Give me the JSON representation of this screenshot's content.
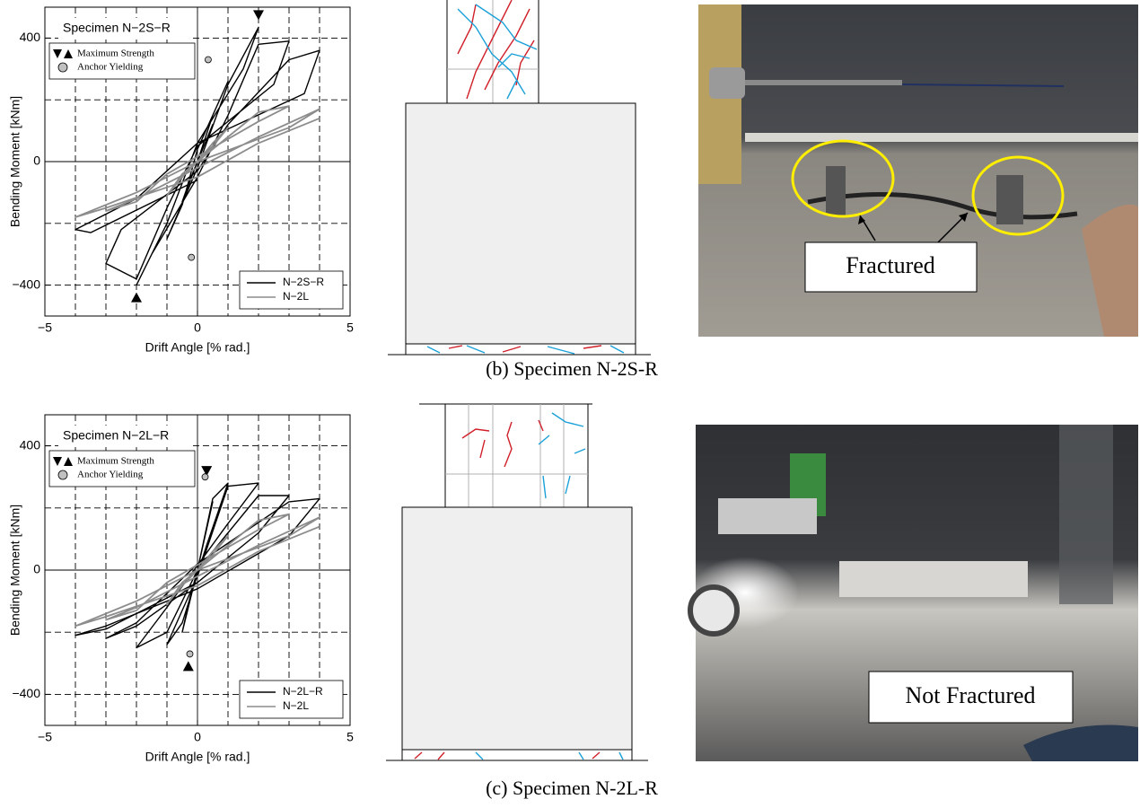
{
  "chart_data": [
    {
      "type": "line",
      "title": "Specimen N−2S−R",
      "x_label": "Drift Angle [% rad.]",
      "y_label": "Bending Moment [kNm]",
      "xlim": [
        -5,
        5
      ],
      "ylim": [
        -500,
        500
      ],
      "xticks": [
        {
          "value": -5,
          "label": "−5"
        },
        0,
        5
      ],
      "yticks": [
        {
          "value": -400,
          "label": "−400"
        },
        0,
        400
      ],
      "xgrid": [
        -4,
        -3,
        -2,
        -1,
        0,
        1,
        2,
        3,
        4
      ],
      "ygrid": [
        -400,
        -200,
        0,
        200,
        400
      ],
      "legend": "lower right",
      "series": [
        {
          "name": "N−2S−R",
          "color": "#000000",
          "x": [
            0,
            0.25,
            0.5,
            0,
            -0.25,
            -0.5,
            0,
            0.5,
            1,
            0,
            -0.5,
            -1,
            0,
            1,
            2,
            1.5,
            0,
            -1,
            -2,
            -1.5,
            0,
            1,
            2,
            3,
            2.5,
            0,
            -1,
            -2,
            -3,
            -2.5,
            0,
            1,
            3,
            4,
            3.5,
            0,
            -2,
            -4,
            -3.5,
            0
          ],
          "values": [
            0,
            60,
            120,
            0,
            -60,
            -130,
            0,
            150,
            260,
            40,
            -140,
            -250,
            -20,
            250,
            435,
            300,
            60,
            -200,
            -400,
            -300,
            -50,
            150,
            380,
            390,
            250,
            50,
            -150,
            -380,
            -330,
            -220,
            -30,
            120,
            330,
            360,
            220,
            60,
            -120,
            -220,
            -230,
            -60
          ]
        },
        {
          "name": "N−2L",
          "color": "#8c8c8c",
          "x": [
            0,
            0.5,
            1,
            0.5,
            -0.5,
            -1,
            -0.5,
            0.5,
            2,
            3,
            2,
            -1,
            -2,
            -3,
            -2,
            0,
            2,
            4,
            3,
            0,
            -2,
            -4,
            -3,
            0,
            2,
            4
          ],
          "values": [
            0,
            60,
            110,
            50,
            -50,
            -110,
            -40,
            40,
            160,
            180,
            130,
            -40,
            -130,
            -160,
            -120,
            -20,
            80,
            170,
            110,
            0,
            -100,
            -180,
            -150,
            -50,
            60,
            140
          ]
        }
      ],
      "markers": [
        {
          "name": "Maximum Strength",
          "shape": "triangle",
          "color": "#000000",
          "x": [
            2,
            -2
          ],
          "values": [
            435,
            -400
          ]
        },
        {
          "name": "Anchor Yielding",
          "shape": "circle",
          "color": "#c0c0c0",
          "x": [
            0.35,
            -0.2
          ],
          "values": [
            330,
            -310
          ]
        }
      ]
    },
    {
      "type": "line",
      "title": "Specimen N−2L−R",
      "x_label": "Drift Angle [% rad.]",
      "y_label": "Bending Moment [kNm]",
      "xlim": [
        -5,
        5
      ],
      "ylim": [
        -500,
        500
      ],
      "xticks": [
        {
          "value": -5,
          "label": "−5"
        },
        0,
        5
      ],
      "yticks": [
        {
          "value": -400,
          "label": "−400"
        },
        0,
        400
      ],
      "xgrid": [
        -4,
        -3,
        -2,
        -1,
        0,
        1,
        2,
        3,
        4
      ],
      "ygrid": [
        -400,
        -200,
        0,
        200,
        400
      ],
      "legend": "lower right",
      "series": [
        {
          "name": "N−2L−R",
          "color": "#000000",
          "x": [
            0,
            0.25,
            0.5,
            0,
            -0.25,
            -0.5,
            0,
            0.5,
            1,
            0.3,
            -0.5,
            -1,
            0,
            1,
            2,
            1,
            -1,
            -2,
            -1,
            0,
            2,
            3,
            2,
            0,
            -2,
            -3,
            -2,
            0,
            3,
            4,
            3,
            0,
            -3,
            -4,
            -3,
            0
          ],
          "values": [
            0,
            110,
            220,
            0,
            -90,
            -200,
            0,
            230,
            280,
            80,
            -170,
            -240,
            -20,
            270,
            280,
            150,
            -120,
            -250,
            -200,
            0,
            240,
            240,
            120,
            -40,
            -180,
            -220,
            -170,
            20,
            220,
            230,
            110,
            -60,
            -180,
            -210,
            -190,
            -40
          ]
        },
        {
          "name": "N−2L",
          "color": "#8c8c8c",
          "x": [
            0,
            0.5,
            1,
            0.5,
            -0.5,
            -1,
            -0.5,
            0.5,
            2,
            3,
            2,
            -1,
            -2,
            -3,
            -2,
            0,
            2,
            4,
            3,
            0,
            -2,
            -4,
            -3,
            0,
            2,
            4
          ],
          "values": [
            0,
            60,
            110,
            50,
            -50,
            -110,
            -40,
            40,
            160,
            180,
            130,
            -40,
            -130,
            -160,
            -120,
            -20,
            80,
            170,
            110,
            0,
            -100,
            -180,
            -150,
            -50,
            60,
            140
          ]
        }
      ],
      "markers": [
        {
          "name": "Maximum Strength",
          "shape": "triangle",
          "color": "#000000",
          "x": [
            0.3,
            -0.3
          ],
          "values": [
            280,
            -270
          ]
        },
        {
          "name": "Anchor Yielding",
          "shape": "circle",
          "color": "#c0c0c0",
          "x": [
            0.25,
            -0.25
          ],
          "values": [
            300,
            -270
          ]
        }
      ]
    }
  ],
  "photos": [
    {
      "label": "Fractured"
    },
    {
      "label": "Not Fractured"
    }
  ],
  "captions": [
    "(b) Specimen N-2S-R",
    "(c) Specimen N-2L-R"
  ]
}
